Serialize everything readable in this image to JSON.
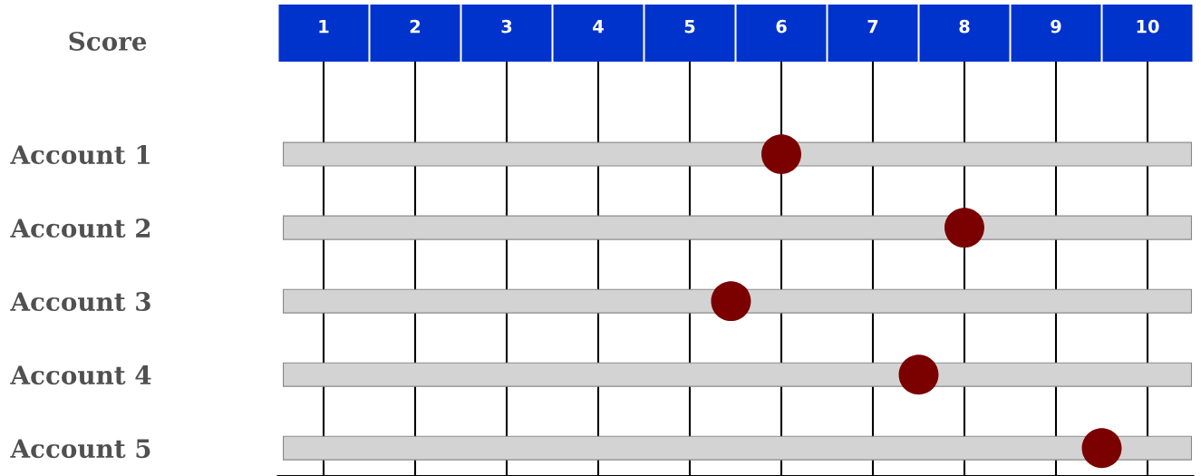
{
  "chart_data": {
    "type": "scatter",
    "orientation": "horizontal",
    "xlabel": "Score",
    "categories": [
      "Account 1",
      "Account 2",
      "Account 3",
      "Account 4",
      "Account 5"
    ],
    "values": [
      6.0,
      8.0,
      5.45,
      7.5,
      9.5
    ],
    "color": "#7b0000",
    "marker": "circle",
    "xlim": [
      0.5,
      10.5
    ],
    "xticks": [
      1,
      2,
      3,
      4,
      5,
      6,
      7,
      8,
      9,
      10
    ],
    "grid": "x"
  }
}
